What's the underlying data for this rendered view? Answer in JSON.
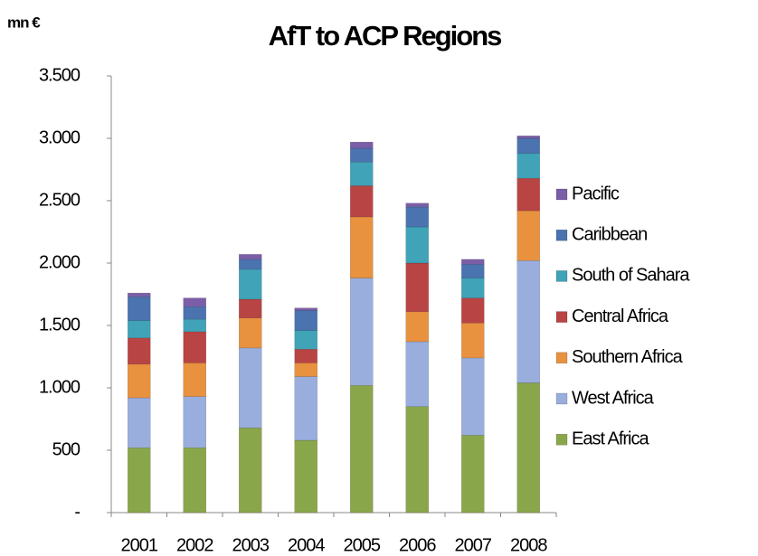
{
  "chart_data": {
    "type": "stacked_bar",
    "title": "AfT to ACP Regions",
    "unit_label": "mn €",
    "categories": [
      "2001",
      "2002",
      "2003",
      "2004",
      "2005",
      "2006",
      "2007",
      "2008"
    ],
    "series": [
      {
        "name": "East Africa",
        "color": "#8aa64a",
        "values": [
          520,
          520,
          680,
          580,
          1020,
          850,
          620,
          1040
        ]
      },
      {
        "name": "West Africa",
        "color": "#9aaede",
        "values": [
          400,
          410,
          640,
          510,
          860,
          520,
          620,
          980
        ]
      },
      {
        "name": "Southern Africa",
        "color": "#e8913f",
        "values": [
          270,
          270,
          240,
          110,
          490,
          240,
          280,
          400
        ]
      },
      {
        "name": "Central Africa",
        "color": "#b94444",
        "values": [
          210,
          250,
          150,
          110,
          250,
          390,
          200,
          260
        ]
      },
      {
        "name": "South of Sahara",
        "color": "#40a3b8",
        "values": [
          140,
          100,
          240,
          150,
          190,
          290,
          160,
          200
        ]
      },
      {
        "name": "Caribbean",
        "color": "#4a73b0",
        "values": [
          190,
          100,
          80,
          160,
          110,
          160,
          110,
          120
        ]
      },
      {
        "name": "Pacific",
        "color": "#7b5ea7",
        "values": [
          30,
          70,
          40,
          20,
          50,
          30,
          40,
          20
        ]
      }
    ],
    "ylim": [
      0,
      3500
    ],
    "yticks": [
      {
        "value": 0,
        "label": "-"
      },
      500,
      {
        "value": 1000,
        "label": "1.000"
      },
      {
        "value": 1500,
        "label": "1.500"
      },
      {
        "value": 2000,
        "label": "2.000"
      },
      {
        "value": 2500,
        "label": "2.500"
      },
      {
        "value": 3000,
        "label": "3.000"
      },
      {
        "value": 3500,
        "label": "3.500"
      }
    ],
    "legend": "right"
  }
}
